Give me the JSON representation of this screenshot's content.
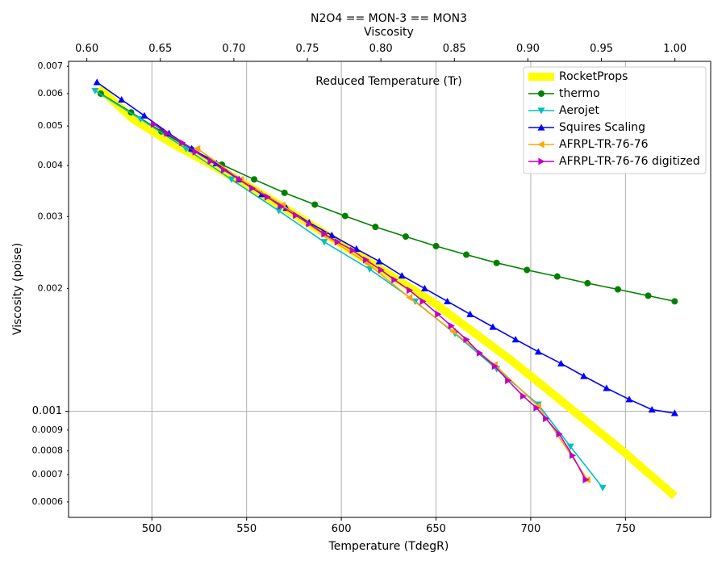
{
  "chart_data": {
    "type": "line",
    "title": "N2O4 == MON-3 == MON3",
    "subtitle": "Viscosity",
    "annotation": "Reduced Temperature (Tr)",
    "xlabel": "Temperature (TdegR)",
    "ylabel": "Viscosity (poise)",
    "x2label": "",
    "xlim": [
      456,
      795
    ],
    "ylim": [
      0.00055,
      0.0072
    ],
    "yscale": "log",
    "x2lim": [
      0.58758,
      1.02432
    ],
    "grid": true,
    "legend_position": "top-right",
    "x_ticks": [
      500,
      550,
      600,
      650,
      700,
      750
    ],
    "x2_ticks": [
      0.6,
      0.65,
      0.7,
      0.75,
      0.8,
      0.85,
      0.9,
      0.95,
      1.0
    ],
    "y_major_ticks": [
      0.001
    ],
    "y_minor_ticks": [
      0.0006,
      0.0007,
      0.0008,
      0.0009,
      0.002,
      0.003,
      0.004,
      0.005,
      0.006,
      0.007
    ],
    "x_tick_labels": [
      "500",
      "550",
      "600",
      "650",
      "700",
      "750"
    ],
    "x2_tick_labels": [
      "0.60",
      "0.65",
      "0.70",
      "0.75",
      "0.80",
      "0.85",
      "0.90",
      "0.95",
      "1.00"
    ],
    "y_major_tick_labels": [
      "0.001"
    ],
    "y_minor_tick_labels": [
      "0.0006",
      "0.0007",
      "0.0008",
      "0.0009",
      "0.002",
      "0.003",
      "0.004",
      "0.005",
      "0.006",
      "0.007"
    ],
    "series": [
      {
        "name": "RocketProps",
        "color": "#ffff00",
        "marker": "none",
        "style": "thick",
        "x": [
          472,
          490,
          510,
          530,
          550,
          570,
          590,
          610,
          630,
          650,
          670,
          690,
          710,
          730,
          750,
          776
        ],
        "y": [
          0.0062,
          0.0052,
          0.00455,
          0.00405,
          0.00358,
          0.00315,
          0.00275,
          0.0024,
          0.0021,
          0.00183,
          0.00156,
          0.00133,
          0.00112,
          0.00094,
          0.00079,
          0.00062
        ]
      },
      {
        "name": "thermo",
        "color": "#008000",
        "marker": "circle",
        "x": [
          473,
          489,
          505,
          521,
          537,
          554,
          570,
          586,
          602,
          618,
          634,
          650,
          666,
          682,
          698,
          714,
          730,
          746,
          762,
          776
        ],
        "y": [
          0.006,
          0.0054,
          0.00485,
          0.00438,
          0.00402,
          0.0037,
          0.00343,
          0.00321,
          0.00301,
          0.00283,
          0.00268,
          0.00254,
          0.00242,
          0.00231,
          0.00222,
          0.00214,
          0.00206,
          0.00199,
          0.00192,
          0.00186
        ]
      },
      {
        "name": "Aerojet",
        "color": "#00bfbf",
        "marker": "triangle-down",
        "x": [
          470,
          494,
          518,
          542,
          567,
          591,
          615,
          639,
          660,
          682,
          704,
          721,
          738
        ],
        "y": [
          0.0061,
          0.0052,
          0.0044,
          0.0037,
          0.0031,
          0.0026,
          0.00223,
          0.00186,
          0.00155,
          0.00127,
          0.00104,
          0.00082,
          0.00065
        ]
      },
      {
        "name": "Squires Scaling",
        "color": "#0000ff",
        "marker": "triangle-up",
        "x": [
          471,
          484,
          496,
          509,
          521,
          534,
          546,
          558,
          571,
          583,
          595,
          608,
          620,
          632,
          644,
          656,
          668,
          680,
          692,
          704,
          716,
          728,
          740,
          752,
          764,
          776
        ],
        "y": [
          0.0064,
          0.0058,
          0.0053,
          0.0048,
          0.0044,
          0.00405,
          0.0037,
          0.0034,
          0.00315,
          0.0029,
          0.0027,
          0.0025,
          0.00233,
          0.00215,
          0.002,
          0.00186,
          0.00173,
          0.00161,
          0.0015,
          0.0014,
          0.00131,
          0.00122,
          0.00114,
          0.00107,
          0.00101,
          0.00099
        ]
      },
      {
        "name": "AFRPL-TR-76-76",
        "color": "#ffa500",
        "marker": "triangle-left",
        "x": [
          524,
          547,
          569,
          591,
          614,
          636,
          659,
          681,
          704,
          730
        ],
        "y": [
          0.0044,
          0.0037,
          0.0032,
          0.0027,
          0.0023,
          0.0019,
          0.00157,
          0.0013,
          0.00103,
          0.00068
        ]
      },
      {
        "name": "AFRPL-TR-76-76 digitized",
        "color": "#bf00bf",
        "marker": "triangle-right",
        "x": [
          501,
          508,
          516,
          523,
          531,
          538,
          546,
          553,
          561,
          568,
          576,
          583,
          591,
          598,
          606,
          613,
          621,
          628,
          636,
          643,
          651,
          658,
          666,
          673,
          681,
          688,
          696,
          703,
          708,
          715,
          722,
          729
        ],
        "y": [
          0.00505,
          0.0048,
          0.00455,
          0.00432,
          0.0041,
          0.0039,
          0.0037,
          0.00352,
          0.00335,
          0.00318,
          0.00302,
          0.00288,
          0.00272,
          0.0026,
          0.00248,
          0.00235,
          0.00222,
          0.0021,
          0.00198,
          0.00186,
          0.00173,
          0.00162,
          0.0015,
          0.00139,
          0.00129,
          0.00119,
          0.00109,
          0.00102,
          0.00096,
          0.00088,
          0.00078,
          0.00068
        ]
      }
    ]
  }
}
